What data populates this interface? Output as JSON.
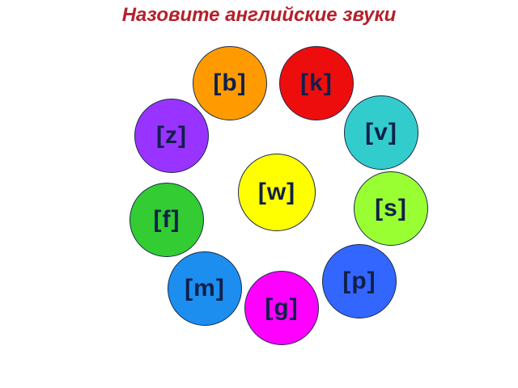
{
  "title": "Назовите английские звуки",
  "sounds": {
    "w": {
      "label": "[w]",
      "color": "#ffff00"
    },
    "b": {
      "label": "[b]",
      "color": "#ff9b00"
    },
    "k": {
      "label": "[k]",
      "color": "#ee0d0d"
    },
    "v": {
      "label": "[v]",
      "color": "#33cccc"
    },
    "z": {
      "label": "[z]",
      "color": "#9933ff"
    },
    "s": {
      "label": "[s]",
      "color": "#99ff33"
    },
    "f": {
      "label": "[f]",
      "color": "#33cc33"
    },
    "p": {
      "label": "[p]",
      "color": "#3366ff"
    },
    "m": {
      "label": "[m]",
      "color": "#1c8ef0"
    },
    "g": {
      "label": "[g]",
      "color": "#ff00ff"
    }
  }
}
